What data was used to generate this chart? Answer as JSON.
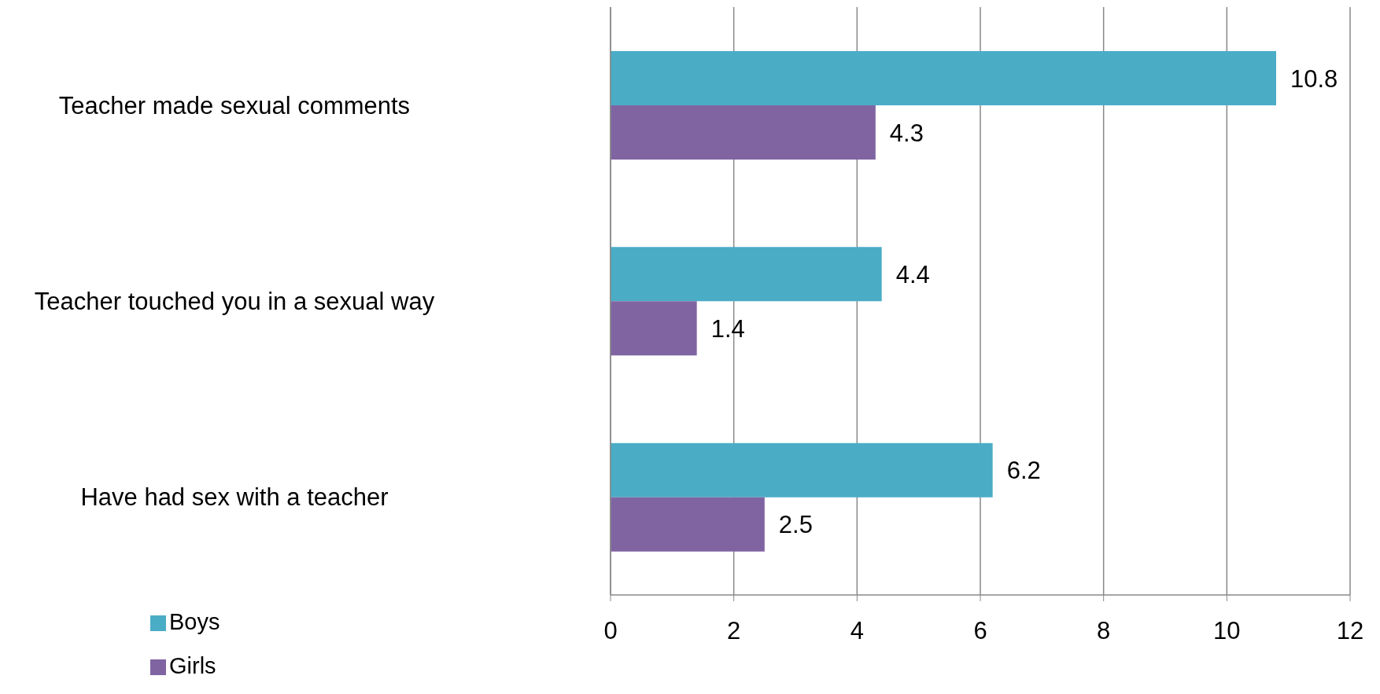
{
  "chart_data": {
    "type": "bar",
    "orientation": "horizontal",
    "categories": [
      "Teacher made sexual comments",
      "Teacher touched you in a sexual way",
      "Have had sex with a teacher"
    ],
    "series": [
      {
        "name": "Boys",
        "color": "#4bacc6",
        "values": [
          10.8,
          4.4,
          6.2
        ]
      },
      {
        "name": "Girls",
        "color": "#8064a2",
        "values": [
          4.3,
          1.4,
          2.5
        ]
      }
    ],
    "xlim": [
      0,
      12
    ],
    "xticks": [
      0,
      2,
      4,
      6,
      8,
      10,
      12
    ],
    "grid": "x",
    "legend": "bottom left",
    "data_labels": true
  }
}
